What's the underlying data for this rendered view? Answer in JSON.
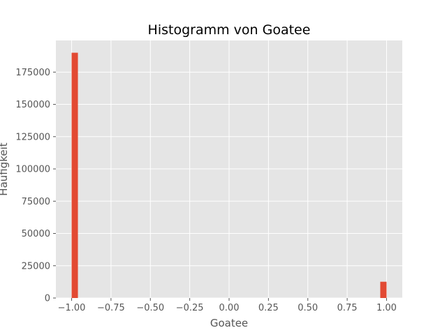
{
  "chart_data": {
    "type": "bar",
    "title": "Histogramm von Goatee",
    "xlabel": "Goatee",
    "ylabel": "Häufigkeit",
    "xlim": [
      -1.1,
      1.1
    ],
    "ylim": [
      0,
      199500
    ],
    "xticks": [
      -1.0,
      -0.75,
      -0.5,
      -0.25,
      0.0,
      0.25,
      0.5,
      0.75,
      1.0
    ],
    "xtick_labels": [
      "−1.00",
      "−0.75",
      "−0.50",
      "−0.25",
      "0.00",
      "0.25",
      "0.50",
      "0.75",
      "1.00"
    ],
    "yticks": [
      0,
      25000,
      50000,
      75000,
      100000,
      125000,
      150000,
      175000
    ],
    "ytick_labels": [
      "0",
      "25000",
      "50000",
      "75000",
      "100000",
      "125000",
      "150000",
      "175000"
    ],
    "bins": [
      {
        "x_start": -1.0,
        "x_end": -0.96,
        "count": 190000
      },
      {
        "x_start": 0.96,
        "x_end": 1.0,
        "count": 12600
      }
    ],
    "grid": true,
    "legend": "none",
    "colors": {
      "bar": "#e24a33",
      "plot_bg": "#e5e5e5",
      "grid": "#ffffff"
    }
  }
}
